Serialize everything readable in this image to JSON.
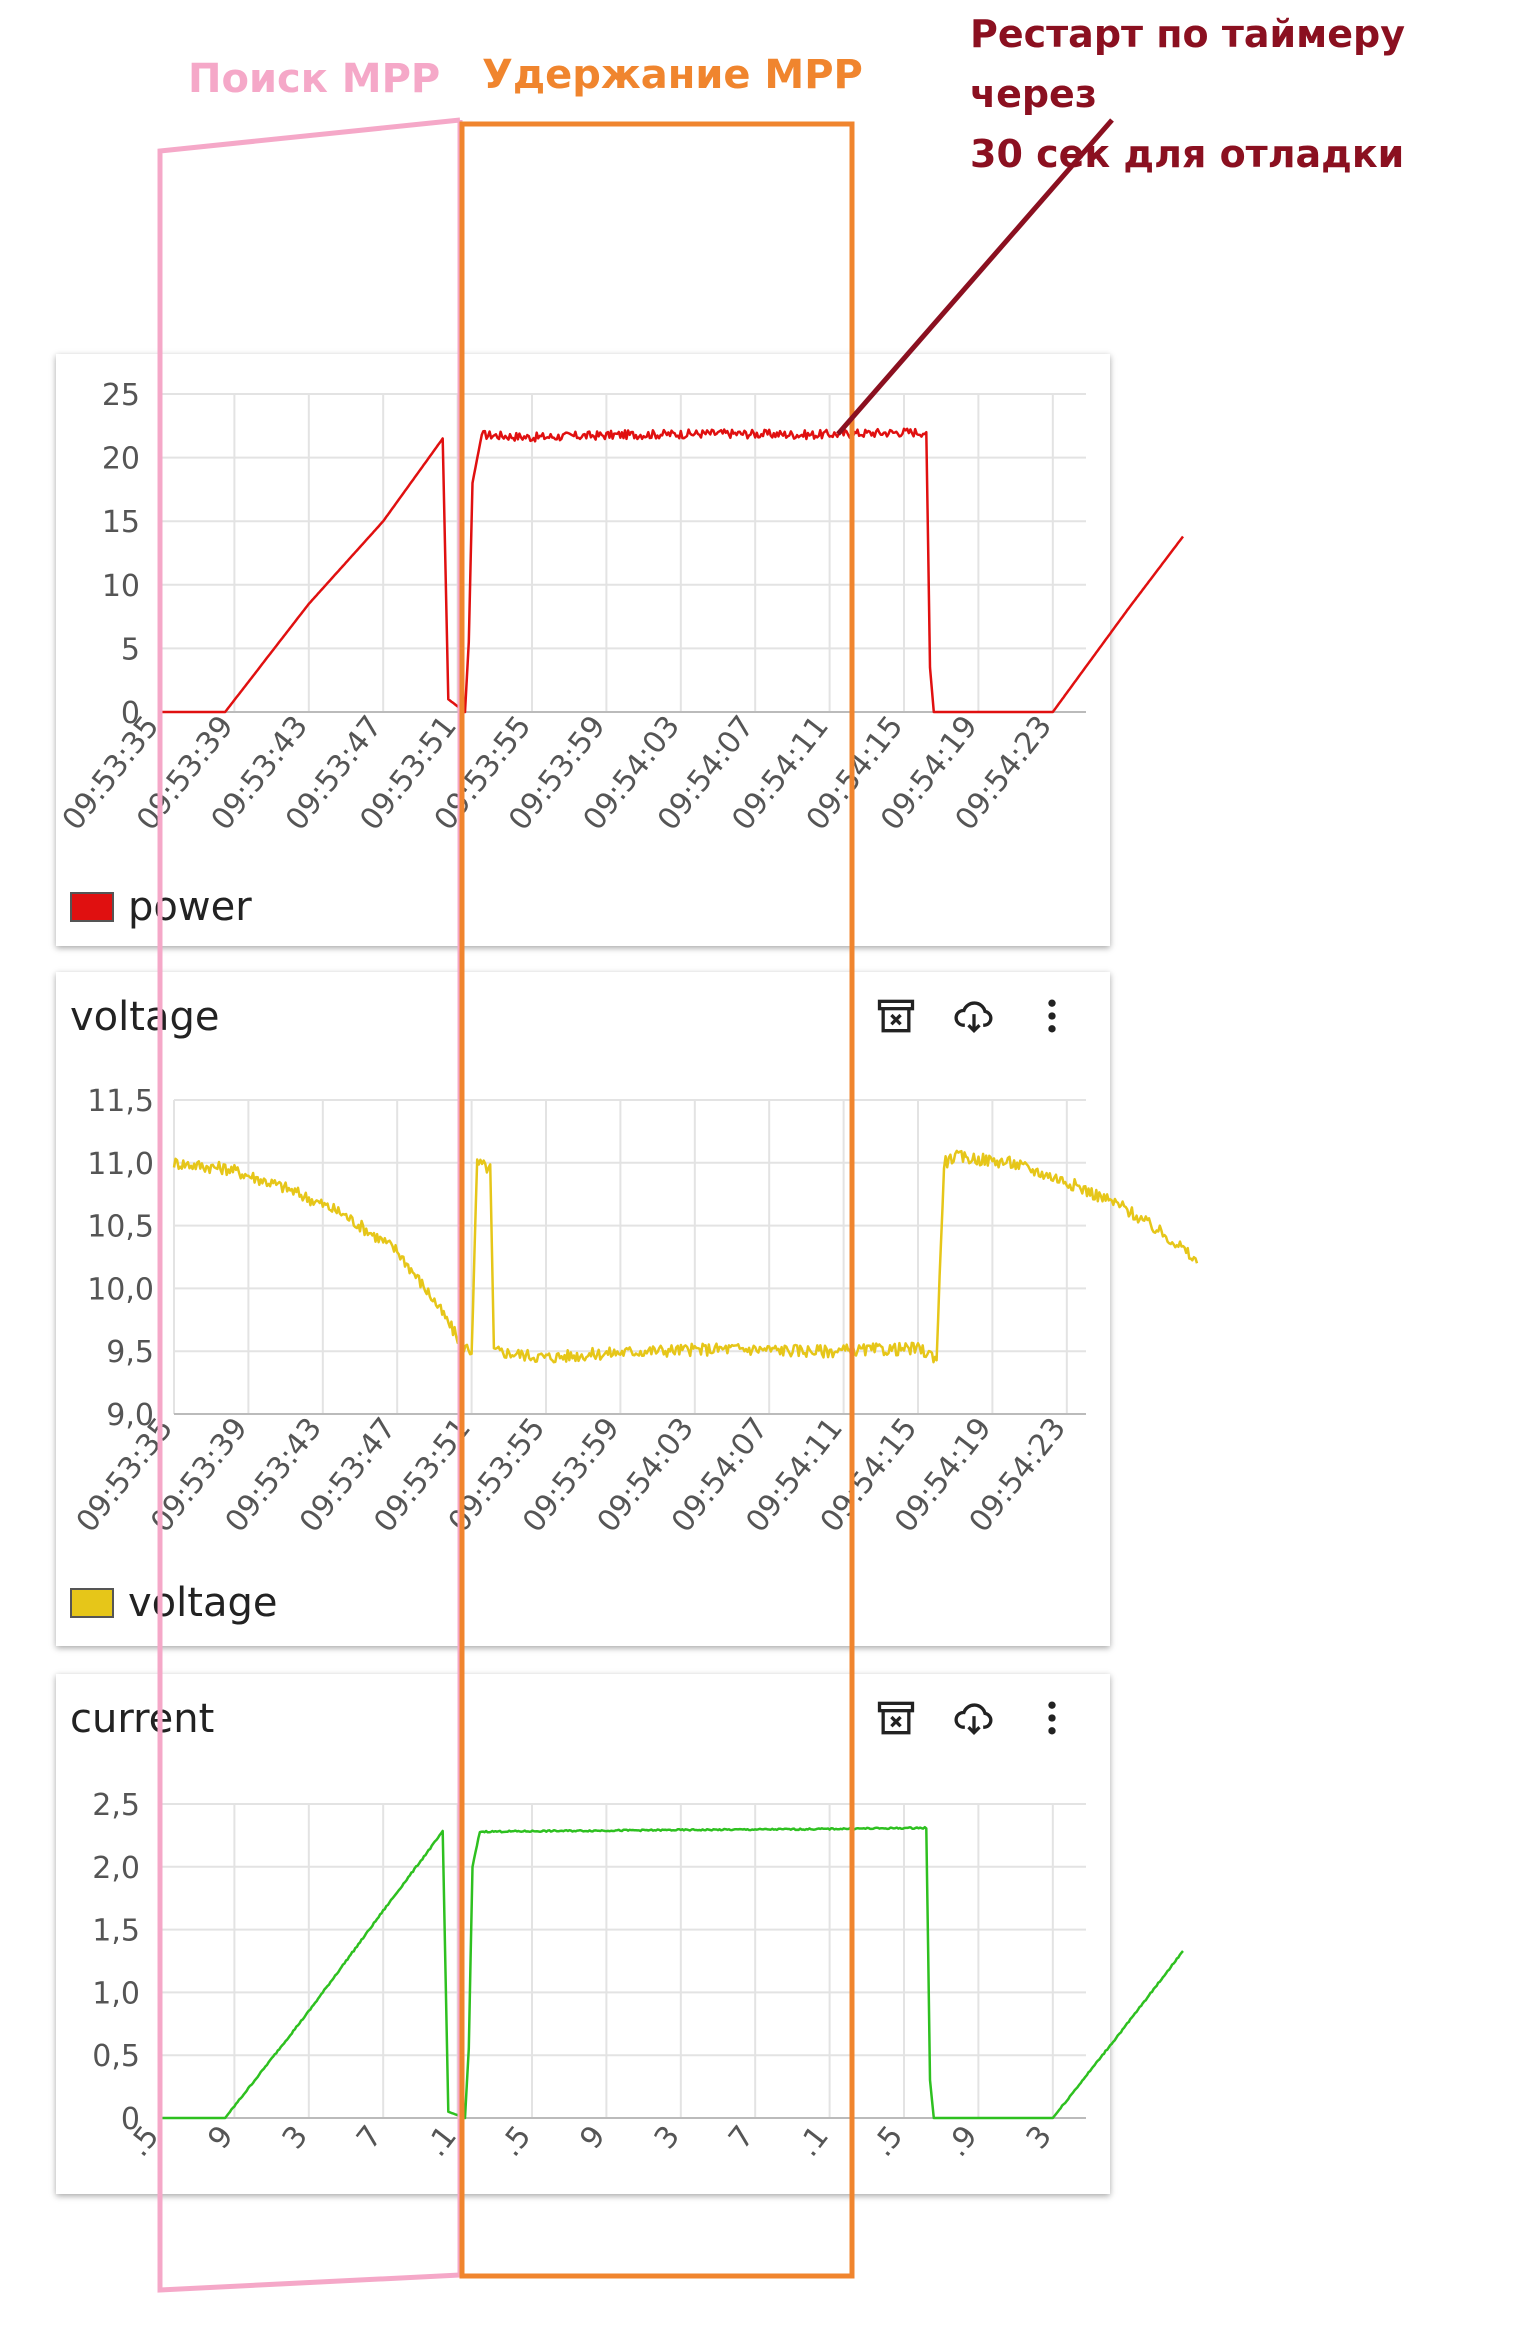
{
  "annotations": {
    "search_mpp": "Поиск MPP",
    "hold_mpp": "Удержание MPP",
    "restart_line1": "Рестарт по таймеру через",
    "restart_line2": "30 сек для отладки",
    "search_color": "#f5a8c8",
    "hold_color": "#f0852e",
    "restart_color": "#8b1020"
  },
  "panels": {
    "power": {
      "title": "",
      "legend": "power"
    },
    "voltage": {
      "title": "voltage",
      "legend": "voltage"
    },
    "current": {
      "title": "current",
      "legend": ""
    }
  },
  "icons": [
    "archive-x-icon",
    "cloud-download-icon",
    "more-vertical-icon"
  ],
  "chart_data": [
    {
      "type": "line",
      "id": "power",
      "series": [
        {
          "name": "power",
          "color": "#e01010"
        }
      ],
      "x_ticks": [
        "09:53:35",
        "09:53:39",
        "09:53:43",
        "09:53:47",
        "09:53:51",
        "09:53:55",
        "09:53:59",
        "09:54:03",
        "09:54:07",
        "09:54:11",
        "09:54:15",
        "09:54:19",
        "09:54:23"
      ],
      "y_ticks": [
        "0",
        "5",
        "10",
        "15",
        "20",
        "25"
      ],
      "ylim": [
        0,
        25
      ],
      "xlim_seconds": [
        0,
        50
      ],
      "points": [
        [
          0,
          0
        ],
        [
          3.5,
          0
        ],
        [
          8,
          8.5
        ],
        [
          12,
          15
        ],
        [
          15.2,
          21.5
        ],
        [
          15.5,
          1
        ],
        [
          16.4,
          0
        ],
        [
          16.6,
          5.5
        ],
        [
          16.8,
          18
        ],
        [
          17.3,
          21.8
        ],
        [
          20,
          21.6
        ],
        [
          25,
          21.8
        ],
        [
          30,
          21.9
        ],
        [
          35,
          21.8
        ],
        [
          40,
          22
        ],
        [
          41.2,
          22
        ],
        [
          41.4,
          3.5
        ],
        [
          41.6,
          0
        ],
        [
          48,
          0
        ],
        [
          52,
          8
        ],
        [
          55,
          13.8
        ]
      ],
      "noisy_segment": [
        17.3,
        41.2,
        0.35
      ]
    },
    {
      "type": "line",
      "id": "voltage",
      "series": [
        {
          "name": "voltage",
          "color": "#e6c619"
        }
      ],
      "x_ticks": [
        "09:53:35",
        "09:53:39",
        "09:53:43",
        "09:53:47",
        "09:53:51",
        "09:53:55",
        "09:53:59",
        "09:54:03",
        "09:54:07",
        "09:54:11",
        "09:54:15",
        "09:54:19",
        "09:54:23"
      ],
      "y_ticks": [
        "9,0",
        "9,5",
        "10,0",
        "10,5",
        "11,0",
        "11,5"
      ],
      "ylim": [
        9.0,
        11.5
      ],
      "points": [
        [
          0,
          11.0
        ],
        [
          3,
          10.95
        ],
        [
          6,
          10.8
        ],
        [
          9,
          10.6
        ],
        [
          12,
          10.3
        ],
        [
          14,
          9.9
        ],
        [
          15.5,
          9.55
        ],
        [
          16,
          9.5
        ],
        [
          16.3,
          11.0
        ],
        [
          17,
          10.95
        ],
        [
          17.2,
          9.5
        ],
        [
          20,
          9.45
        ],
        [
          25,
          9.5
        ],
        [
          30,
          9.52
        ],
        [
          35,
          9.5
        ],
        [
          40,
          9.52
        ],
        [
          41,
          9.45
        ],
        [
          41.4,
          11.0
        ],
        [
          42,
          11.05
        ],
        [
          45,
          11.0
        ],
        [
          48,
          10.85
        ],
        [
          51,
          10.65
        ],
        [
          54,
          10.35
        ],
        [
          55,
          10.2
        ]
      ],
      "noise": 0.05
    },
    {
      "type": "line",
      "id": "current",
      "series": [
        {
          "name": "current",
          "color": "#2ec020"
        }
      ],
      "x_ticks": [
        ".5",
        "9",
        "3",
        "7",
        ".1",
        ".5",
        "9",
        "3",
        "7",
        ".1",
        ".5",
        ".9",
        "3"
      ],
      "y_ticks": [
        "0",
        "0,5",
        "1,0",
        "1,5",
        "2,0",
        "2,5"
      ],
      "ylim": [
        0,
        2.5
      ],
      "points": [
        [
          0,
          0
        ],
        [
          3.5,
          0
        ],
        [
          8,
          0.85
        ],
        [
          12,
          1.65
        ],
        [
          15.2,
          2.28
        ],
        [
          15.5,
          0.05
        ],
        [
          16.4,
          0
        ],
        [
          16.6,
          0.55
        ],
        [
          16.8,
          2.0
        ],
        [
          17.2,
          2.28
        ],
        [
          25,
          2.29
        ],
        [
          35,
          2.3
        ],
        [
          41.2,
          2.31
        ],
        [
          41.4,
          0.3
        ],
        [
          41.6,
          0
        ],
        [
          48,
          0
        ],
        [
          52,
          0.75
        ],
        [
          55,
          1.33
        ]
      ],
      "noise": 0.006
    }
  ]
}
